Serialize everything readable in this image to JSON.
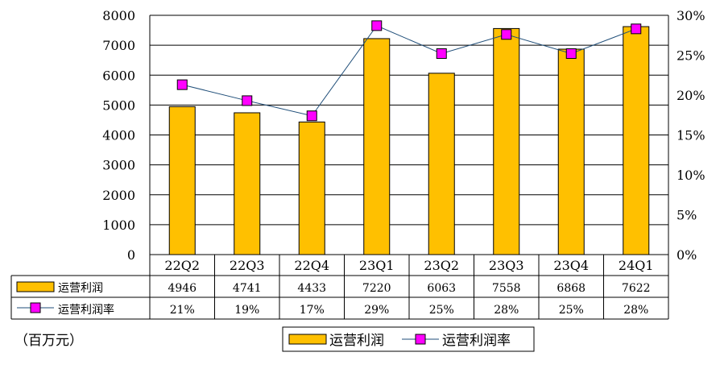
{
  "chart_data": {
    "type": "bar",
    "categories": [
      "22Q2",
      "22Q3",
      "22Q4",
      "23Q1",
      "23Q2",
      "23Q3",
      "23Q4",
      "24Q1"
    ],
    "series": [
      {
        "name": "运营利润",
        "type": "bar",
        "axis": "left",
        "color": "#FFC000",
        "values": [
          4946,
          4741,
          4433,
          7220,
          6063,
          7558,
          6868,
          7622
        ],
        "labels": [
          "4946",
          "4741",
          "4433",
          "7220",
          "6063",
          "7558",
          "6868",
          "7622"
        ]
      },
      {
        "name": "运营利润率",
        "type": "line",
        "axis": "right",
        "color": "#FF00FF",
        "line_color": "#1F4E79",
        "values": [
          21.3,
          19.3,
          17.4,
          28.7,
          25.2,
          27.6,
          25.2,
          28.3
        ],
        "labels": [
          "21%",
          "19%",
          "17%",
          "29%",
          "25%",
          "28%",
          "25%",
          "28%"
        ]
      }
    ],
    "y_left": {
      "min": 0,
      "max": 8000,
      "step": 1000,
      "tick_labels": [
        "0",
        "1000",
        "2000",
        "3000",
        "4000",
        "5000",
        "6000",
        "7000",
        "8000"
      ]
    },
    "y_right": {
      "min": 0,
      "max": 30,
      "step": 5,
      "tick_labels": [
        "0%",
        "5%",
        "10%",
        "15%",
        "20%",
        "25%",
        "30%"
      ]
    },
    "unit_note": "（百万元）",
    "legend": {
      "position": "bottom-center",
      "items": [
        "运营利润",
        "运营利润率"
      ]
    },
    "grid": true,
    "data_table": true
  }
}
